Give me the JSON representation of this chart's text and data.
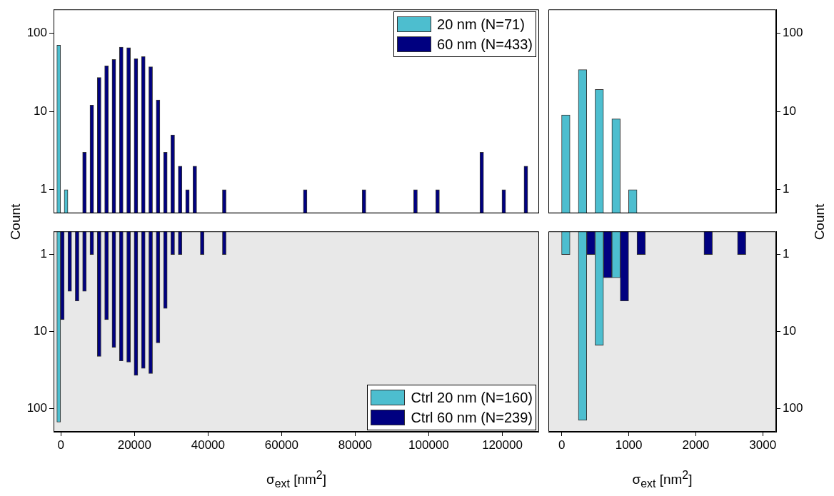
{
  "chart_data": [
    {
      "type": "bar",
      "ylabel": "Count",
      "log": "y",
      "xlim": [
        -2000,
        130000
      ],
      "ylim": [
        0.5,
        200
      ],
      "yticks": [
        1,
        10,
        100
      ],
      "tick_labels": "y",
      "legend": "top right",
      "series": [
        {
          "name": "20 nm (N=71)",
          "color": "#4dbecf",
          "x": [
            -600,
            1400
          ],
          "values": [
            70,
            1
          ]
        },
        {
          "name": "60 nm (N=433)",
          "color": "#000080",
          "x": [
            6400,
            8400,
            10400,
            12400,
            14400,
            16400,
            18400,
            20400,
            22400,
            24400,
            26400,
            28400,
            30400,
            32400,
            34400,
            36400,
            44400,
            66400,
            82400,
            96400,
            102400,
            114400,
            120400,
            126400
          ],
          "values": [
            3,
            12,
            27,
            38,
            46,
            66,
            65,
            47,
            50,
            37,
            14,
            3,
            5,
            2,
            1,
            2,
            1,
            1,
            1,
            1,
            1,
            3,
            1,
            2
          ]
        }
      ]
    },
    {
      "type": "bar",
      "xlabel": "σ$_{ext}$ [nm$^{2}$]",
      "log": "y",
      "xlim": [
        -2000,
        130000
      ],
      "ylim": [
        200,
        0.5
      ],
      "xticks": [
        0,
        20000,
        40000,
        60000,
        80000,
        100000,
        120000
      ],
      "yticks": [
        1,
        10,
        100
      ],
      "legend": "bottom right",
      "series": [
        {
          "name": "Ctrl 20 nm (N=160)",
          "color": "#4dbecf",
          "x": [
            -600
          ],
          "values": [
            150
          ]
        },
        {
          "name": "Ctrl 60 nm (N=239)",
          "color": "#000080",
          "x": [
            400,
            2400,
            4400,
            6400,
            8400,
            10400,
            12400,
            14400,
            16400,
            18400,
            20400,
            22400,
            24400,
            26400,
            28400,
            30400,
            32400,
            38400,
            44400
          ],
          "values": [
            7,
            3,
            4,
            3,
            1,
            21,
            7,
            16,
            24,
            25,
            37,
            30,
            35,
            14,
            5,
            1,
            1,
            1,
            1
          ]
        }
      ]
    },
    {
      "type": "bar",
      "ylabel": "Count",
      "log": "y",
      "xlim": [
        -200,
        3200
      ],
      "ylim": [
        0.5,
        200
      ],
      "yticks": [
        1,
        10,
        100
      ],
      "tick_labels": "y",
      "series": [
        {
          "color": "#4dbecf",
          "x": [
            60,
            310,
            560,
            810,
            1060
          ],
          "values": [
            9,
            34,
            19,
            8,
            1
          ]
        }
      ]
    },
    {
      "type": "bar",
      "xlabel": "σ$_{ext}$ [nm$^{2}$]",
      "log": "y",
      "xlim": [
        -200,
        3200
      ],
      "ylim": [
        200,
        0.5
      ],
      "xticks": [
        0,
        1000,
        2000,
        3000
      ],
      "yticks": [
        1,
        10,
        100
      ],
      "series": [
        {
          "color": "#4dbecf",
          "x": [
            60,
            310,
            560,
            810
          ],
          "values": [
            1,
            142,
            15,
            2
          ]
        },
        {
          "color": "#000080",
          "x": [
            435,
            685,
            935,
            1185,
            2185,
            2685
          ],
          "values": [
            1,
            2,
            4,
            1,
            1,
            1
          ]
        }
      ]
    }
  ]
}
